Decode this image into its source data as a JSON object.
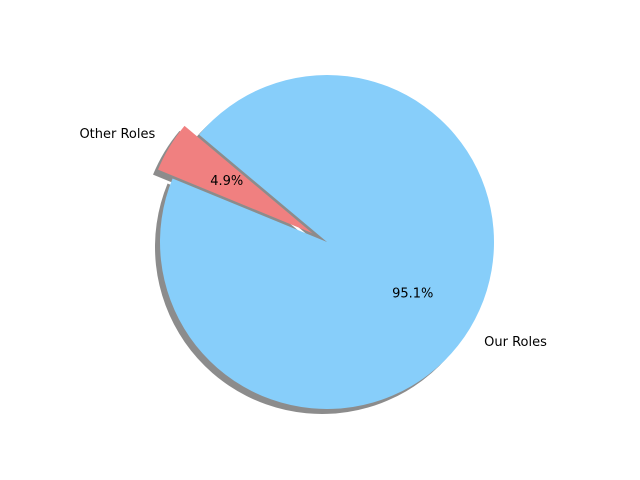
{
  "chart_data": {
    "type": "pie",
    "title": "",
    "labels": [
      "Other Roles",
      "Our Roles"
    ],
    "values": [
      4.9,
      95.1
    ],
    "percent_labels": [
      "4.9%",
      "95.1%"
    ],
    "colors": [
      "#f08080",
      "#87cefa"
    ],
    "exploded": [
      "Other Roles"
    ],
    "shadow": true,
    "legend": "none"
  }
}
